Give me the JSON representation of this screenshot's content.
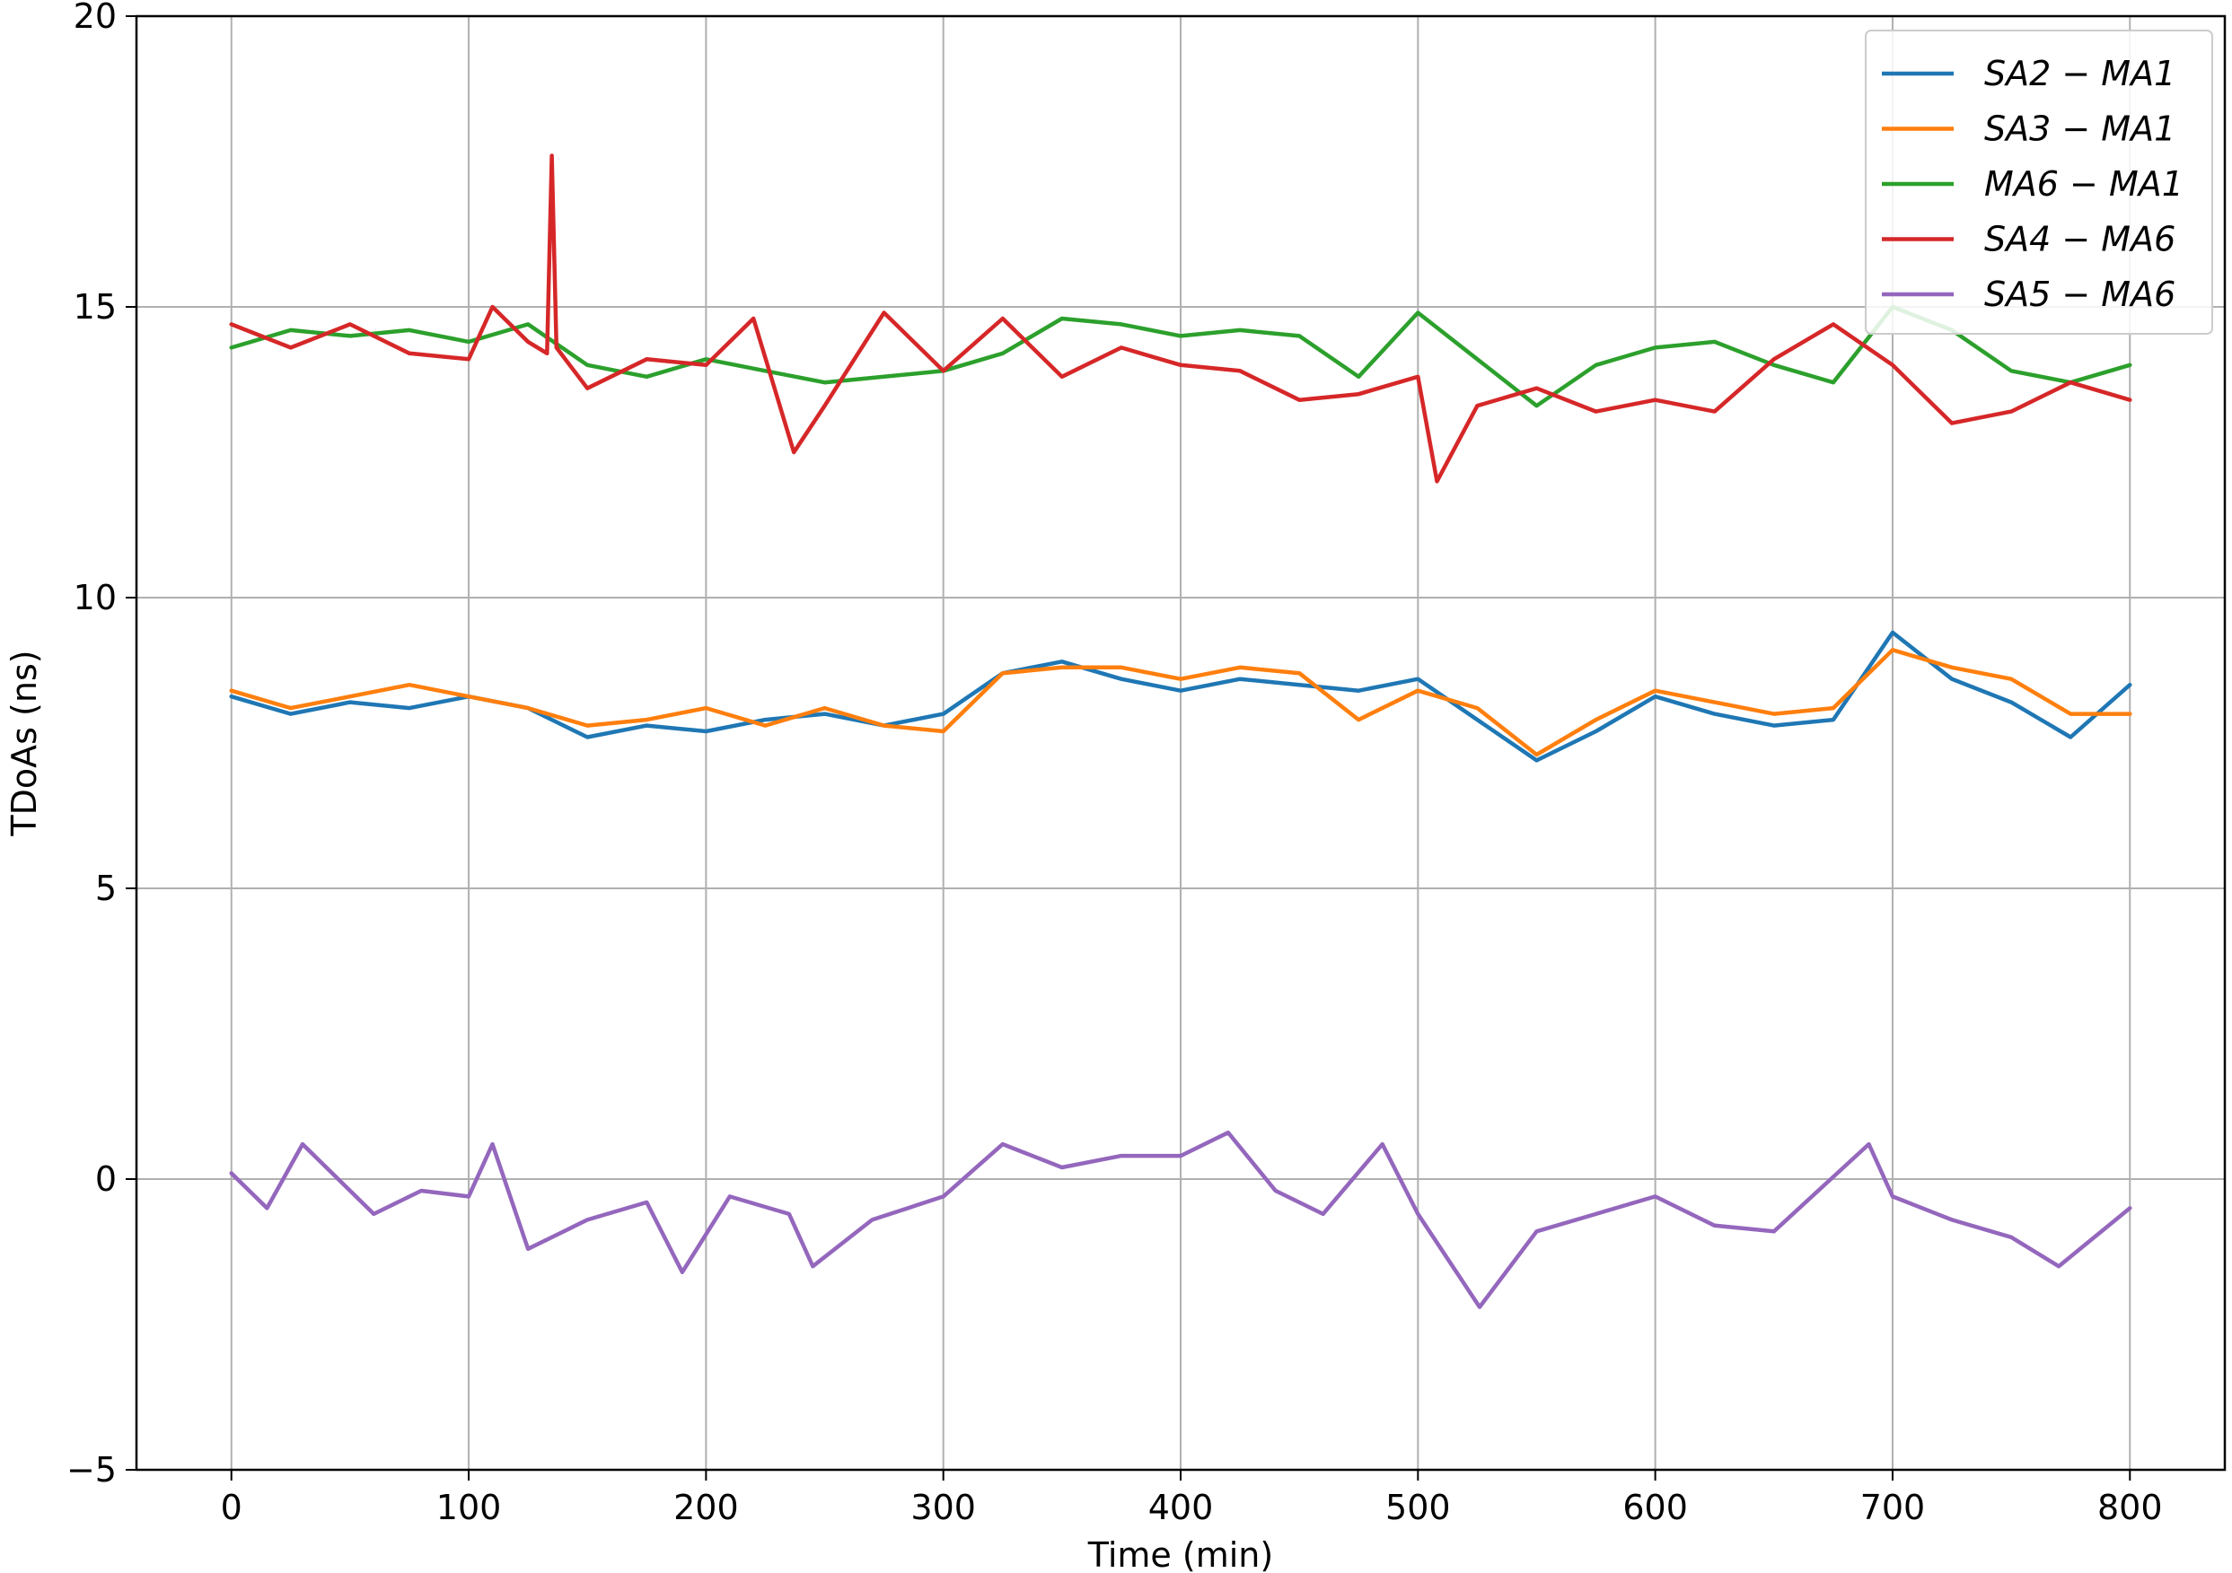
{
  "chart_data": {
    "type": "line",
    "xlabel": "Time (min)",
    "ylabel": "TDoAs (ns)",
    "xlim": [
      -40,
      840
    ],
    "ylim": [
      -5,
      20
    ],
    "xticks": [
      "0",
      "100",
      "200",
      "300",
      "400",
      "500",
      "600",
      "700",
      "800"
    ],
    "yticks": [
      "−5",
      "0",
      "5",
      "10",
      "15",
      "20"
    ],
    "grid": true,
    "legend_position": "top-right",
    "series": [
      {
        "name": "SA2 − MA1",
        "color": "#1f77b4",
        "x": [
          0,
          25,
          50,
          75,
          100,
          125,
          150,
          175,
          200,
          225,
          250,
          275,
          300,
          325,
          350,
          375,
          400,
          425,
          450,
          475,
          500,
          525,
          550,
          575,
          600,
          625,
          650,
          675,
          700,
          725,
          750,
          775,
          800
        ],
        "y": [
          8.3,
          8.0,
          8.2,
          8.1,
          8.3,
          8.1,
          7.6,
          7.8,
          7.7,
          7.9,
          8.0,
          7.8,
          8.0,
          8.7,
          8.9,
          8.6,
          8.4,
          8.6,
          8.5,
          8.4,
          8.6,
          7.9,
          7.2,
          7.7,
          8.3,
          8.0,
          7.8,
          7.9,
          9.4,
          8.6,
          8.2,
          7.6,
          8.5
        ]
      },
      {
        "name": "SA3 − MA1",
        "color": "#ff7f0e",
        "x": [
          0,
          25,
          50,
          75,
          100,
          125,
          150,
          175,
          200,
          225,
          250,
          275,
          300,
          325,
          350,
          375,
          400,
          425,
          450,
          475,
          500,
          525,
          550,
          575,
          600,
          625,
          650,
          675,
          700,
          725,
          750,
          775,
          800
        ],
        "y": [
          8.4,
          8.1,
          8.3,
          8.5,
          8.3,
          8.1,
          7.8,
          7.9,
          8.1,
          7.8,
          8.1,
          7.8,
          7.7,
          8.7,
          8.8,
          8.8,
          8.6,
          8.8,
          8.7,
          7.9,
          8.4,
          8.1,
          7.3,
          7.9,
          8.4,
          8.2,
          8.0,
          8.1,
          9.1,
          8.8,
          8.6,
          8.0,
          8.0
        ]
      },
      {
        "name": "MA6 − MA1",
        "color": "#2ca02c",
        "x": [
          0,
          25,
          50,
          75,
          100,
          125,
          150,
          175,
          200,
          225,
          250,
          275,
          300,
          325,
          350,
          375,
          400,
          425,
          450,
          475,
          500,
          525,
          550,
          575,
          600,
          625,
          650,
          675,
          700,
          725,
          750,
          775,
          800
        ],
        "y": [
          14.3,
          14.6,
          14.5,
          14.6,
          14.4,
          14.7,
          14.0,
          13.8,
          14.1,
          13.9,
          13.7,
          13.8,
          13.9,
          14.2,
          14.8,
          14.7,
          14.5,
          14.6,
          14.5,
          13.8,
          14.9,
          14.1,
          13.3,
          14.0,
          14.3,
          14.4,
          14.0,
          13.7,
          15.0,
          14.6,
          13.9,
          13.7,
          14.0
        ]
      },
      {
        "name": "SA4 − MA6",
        "color": "#d62728",
        "x": [
          0,
          25,
          50,
          75,
          100,
          110,
          125,
          133,
          135,
          137,
          150,
          175,
          200,
          220,
          237,
          250,
          275,
          300,
          325,
          350,
          375,
          400,
          425,
          450,
          475,
          500,
          508,
          525,
          550,
          575,
          600,
          625,
          650,
          675,
          700,
          725,
          750,
          775,
          800
        ],
        "y": [
          14.7,
          14.3,
          14.7,
          14.2,
          14.1,
          15.0,
          14.4,
          14.2,
          17.6,
          14.3,
          13.6,
          14.1,
          14.0,
          14.8,
          12.5,
          13.3,
          14.9,
          13.9,
          14.8,
          13.8,
          14.3,
          14.0,
          13.9,
          13.4,
          13.5,
          13.8,
          12.0,
          13.3,
          13.6,
          13.2,
          13.4,
          13.2,
          14.1,
          14.7,
          14.0,
          13.0,
          13.2,
          13.7,
          13.4
        ]
      },
      {
        "name": "SA5 − MA6",
        "color": "#9467bd",
        "x": [
          0,
          15,
          30,
          45,
          60,
          80,
          100,
          110,
          125,
          150,
          175,
          190,
          210,
          235,
          245,
          270,
          300,
          325,
          350,
          375,
          400,
          420,
          440,
          460,
          485,
          500,
          526,
          550,
          575,
          600,
          625,
          650,
          690,
          700,
          725,
          750,
          770,
          800
        ],
        "y": [
          0.1,
          -0.5,
          0.6,
          0.0,
          -0.6,
          -0.2,
          -0.3,
          0.6,
          -1.2,
          -0.7,
          -0.4,
          -1.6,
          -0.3,
          -0.6,
          -1.5,
          -0.7,
          -0.3,
          0.6,
          0.2,
          0.4,
          0.4,
          0.8,
          -0.2,
          -0.6,
          0.6,
          -0.6,
          -2.2,
          -0.9,
          -0.6,
          -0.3,
          -0.8,
          -0.9,
          0.6,
          -0.3,
          -0.7,
          -1.0,
          -1.5,
          -0.5
        ]
      }
    ]
  }
}
